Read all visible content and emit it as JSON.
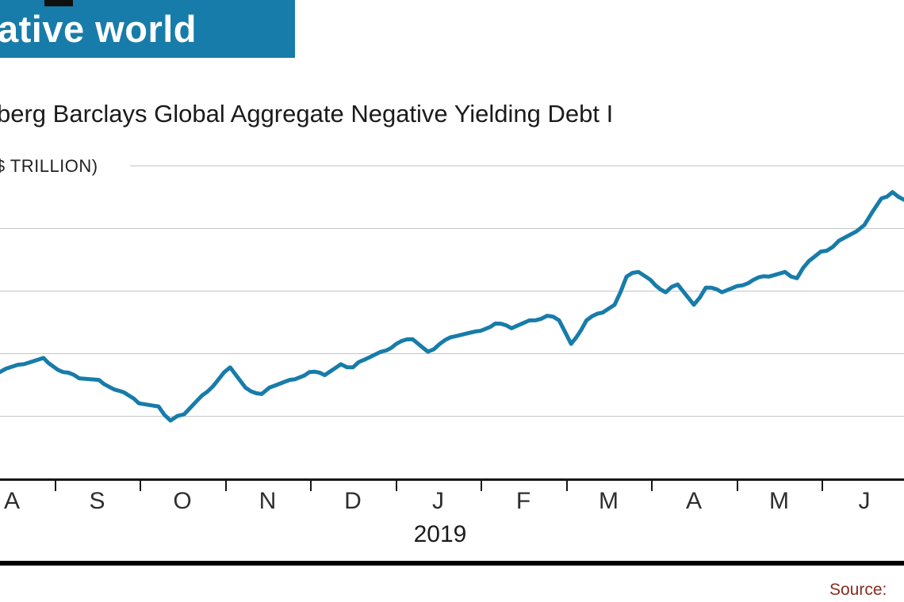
{
  "header": {
    "title": "ative world",
    "bg_color": "#177CA9"
  },
  "chart": {
    "title": "berg Barclays Global Aggregate Negative Yielding Debt I",
    "unit_label": "($ TRILLION)",
    "line_color": "#177CA9",
    "x_axis": {
      "months": [
        "A",
        "S",
        "O",
        "N",
        "D",
        "J",
        "F",
        "M",
        "A",
        "M",
        "J"
      ],
      "year_label": "2019"
    },
    "source_label": "Source:"
  },
  "chart_data": {
    "type": "line",
    "title": "Bloomberg Barclays Global Aggregate Negative Yielding Debt Index",
    "ylabel": "$ trillion",
    "ylim": [
      4,
      14
    ],
    "gridline_values": [
      6,
      8,
      10,
      12,
      14
    ],
    "grid": true,
    "legend": false,
    "x_axis_months": [
      "Aug 2018",
      "Sep 2018",
      "Oct 2018",
      "Nov 2018",
      "Dec 2018",
      "Jan 2019",
      "Feb 2019",
      "Mar 2019",
      "Apr 2019",
      "May 2019",
      "Jun 2019"
    ],
    "x_unit": "month index, 0 = August 2018 label position",
    "points": [
      [
        -0.14,
        7.4
      ],
      [
        0.14,
        7.65
      ],
      [
        0.37,
        7.85
      ],
      [
        0.6,
        7.4
      ],
      [
        0.79,
        7.2
      ],
      [
        1.02,
        7.15
      ],
      [
        1.26,
        6.8
      ],
      [
        1.49,
        6.4
      ],
      [
        1.72,
        6.3
      ],
      [
        1.86,
        5.85
      ],
      [
        2.02,
        6.05
      ],
      [
        2.23,
        6.65
      ],
      [
        2.42,
        7.15
      ],
      [
        2.56,
        7.55
      ],
      [
        2.74,
        6.9
      ],
      [
        2.93,
        6.7
      ],
      [
        3.02,
        6.9
      ],
      [
        3.26,
        7.15
      ],
      [
        3.49,
        7.4
      ],
      [
        3.67,
        7.3
      ],
      [
        3.86,
        7.65
      ],
      [
        4.0,
        7.55
      ],
      [
        4.14,
        7.8
      ],
      [
        4.33,
        8.05
      ],
      [
        4.51,
        8.3
      ],
      [
        4.7,
        8.45
      ],
      [
        4.88,
        8.05
      ],
      [
        5.02,
        8.3
      ],
      [
        5.21,
        8.55
      ],
      [
        5.44,
        8.7
      ],
      [
        5.67,
        8.95
      ],
      [
        5.86,
        8.8
      ],
      [
        6.07,
        9.05
      ],
      [
        6.28,
        9.2
      ],
      [
        6.42,
        9.05
      ],
      [
        6.56,
        8.3
      ],
      [
        6.74,
        9.05
      ],
      [
        6.93,
        9.3
      ],
      [
        7.07,
        9.55
      ],
      [
        7.21,
        10.45
      ],
      [
        7.35,
        10.6
      ],
      [
        7.49,
        10.35
      ],
      [
        7.67,
        9.95
      ],
      [
        7.81,
        10.2
      ],
      [
        8.0,
        9.55
      ],
      [
        8.14,
        10.1
      ],
      [
        8.33,
        9.95
      ],
      [
        8.51,
        10.15
      ],
      [
        8.7,
        10.35
      ],
      [
        8.88,
        10.45
      ],
      [
        9.07,
        10.6
      ],
      [
        9.21,
        10.4
      ],
      [
        9.35,
        10.95
      ],
      [
        9.49,
        11.25
      ],
      [
        9.63,
        11.4
      ],
      [
        9.77,
        11.7
      ],
      [
        9.91,
        11.9
      ],
      [
        10.0,
        12.1
      ],
      [
        10.09,
        12.5
      ],
      [
        10.2,
        12.95
      ],
      [
        10.33,
        13.15
      ],
      [
        10.4,
        13.0
      ],
      [
        10.47,
        12.9
      ]
    ]
  }
}
